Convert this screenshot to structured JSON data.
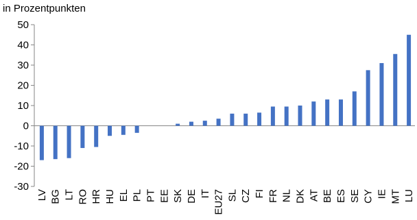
{
  "chart_data": {
    "type": "bar",
    "ylabel": "in Prozentpunkten",
    "ylim": [
      -30,
      50
    ],
    "yticks": [
      -30,
      -20,
      -10,
      0,
      10,
      20,
      30,
      40,
      50
    ],
    "grid": false,
    "legend": "none",
    "bar_color": "#4472C4",
    "categories": [
      "LV",
      "BG",
      "LT",
      "RO",
      "HR",
      "HU",
      "EL",
      "PL",
      "PT",
      "EE",
      "SK",
      "DE",
      "IT",
      "EU27",
      "SL",
      "CZ",
      "FI",
      "FR",
      "NL",
      "DK",
      "AT",
      "BE",
      "ES",
      "SE",
      "CY",
      "IE",
      "MT",
      "LU"
    ],
    "values": [
      -17,
      -16.5,
      -16,
      -11,
      -10.5,
      -5,
      -4.5,
      -3.5,
      0,
      0,
      1,
      2,
      2.5,
      3.5,
      6,
      6,
      6.5,
      9.5,
      9.5,
      10,
      12,
      13,
      13,
      17,
      27.5,
      31,
      35.5,
      45
    ]
  }
}
